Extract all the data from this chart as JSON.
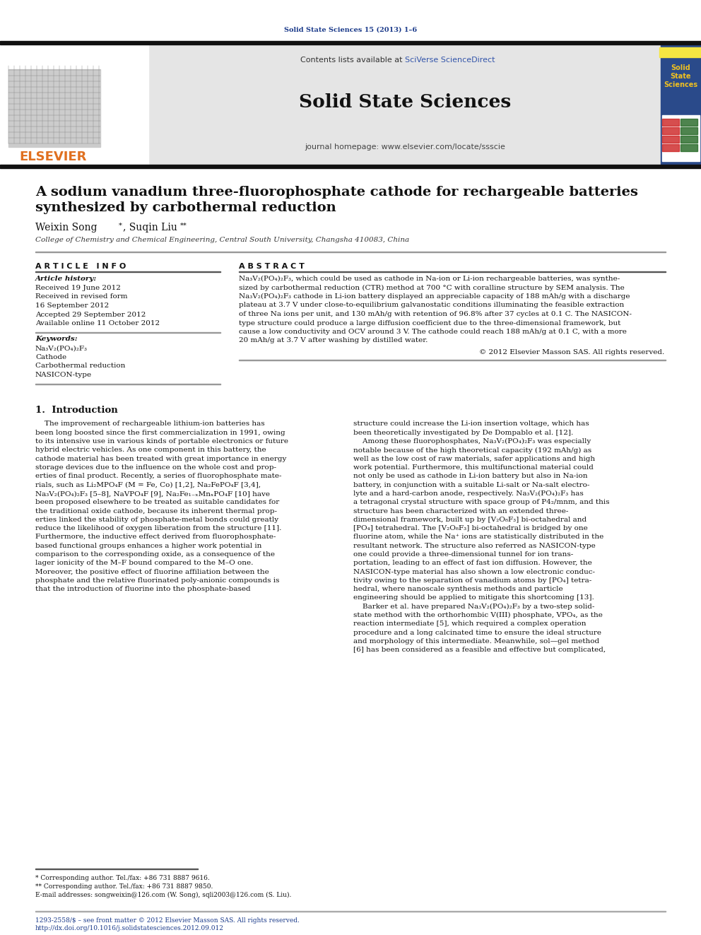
{
  "page_title_journal": "Solid State Sciences 15 (2013) 1–6",
  "journal_name": "Solid State Sciences",
  "contents_line_prefix": "Contents lists available at ",
  "contents_line_link": "SciVerse ScienceDirect",
  "journal_homepage": "journal homepage: www.elsevier.com/locate/ssscie",
  "paper_title_line1": "A sodium vanadium three-fluorophosphate cathode for rechargeable batteries",
  "paper_title_line2": "synthesized by carbothermal reduction",
  "affiliation": "College of Chemistry and Chemical Engineering, Central South University, Changsha 410083, China",
  "article_info_header": "A R T I C L E   I N F O",
  "abstract_header": "A B S T R A C T",
  "article_history_label": "Article history:",
  "received": "Received 19 June 2012",
  "received_revised1": "Received in revised form",
  "received_revised2": "16 September 2012",
  "accepted": "Accepted 29 September 2012",
  "available": "Available online 11 October 2012",
  "keywords_label": "Keywords:",
  "keyword1": "Na₃V₂(PO₄)₂F₃",
  "keyword2": "Cathode",
  "keyword3": "Carbothermal reduction",
  "keyword4": "NASICON-type",
  "abstract_lines": [
    "Na₃V₂(PO₄)₂F₃, which could be used as cathode in Na-ion or Li-ion rechargeable batteries, was synthe-",
    "sized by carbothermal reduction (CTR) method at 700 °C with coralline structure by SEM analysis. The",
    "Na₃V₂(PO₄)₂F₃ cathode in Li-ion battery displayed an appreciable capacity of 188 mAh/g with a discharge",
    "plateau at 3.7 V under close-to-equilibrium galvanostatic conditions illuminating the feasible extraction",
    "of three Na ions per unit, and 130 mAh/g with retention of 96.8% after 37 cycles at 0.1 C. The NASICON-",
    "type structure could produce a large diffusion coefficient due to the three-dimensional framework, but",
    "cause a low conductivity and OCV around 3 V. The cathode could reach 188 mAh/g at 0.1 C, with a more",
    "20 mAh/g at 3.7 V after washing by distilled water."
  ],
  "copyright": "© 2012 Elsevier Masson SAS. All rights reserved.",
  "section1_header": "1.  Introduction",
  "left_col_lines": [
    "    The improvement of rechargeable lithium-ion batteries has",
    "been long boosted since the first commercialization in 1991, owing",
    "to its intensive use in various kinds of portable electronics or future",
    "hybrid electric vehicles. As one component in this battery, the",
    "cathode material has been treated with great importance in energy",
    "storage devices due to the influence on the whole cost and prop-",
    "erties of final product. Recently, a series of fluorophosphate mate-",
    "rials, such as Li₂MPO₄F (M = Fe, Co) [1,2], Na₂FePO₄F [3,4],",
    "Na₃V₂(PO₄)₂F₃ [5–8], NaVPO₄F [9], Na₂Fe₁₋ₓMnₓPO₄F [10] have",
    "been proposed elsewhere to be treated as suitable candidates for",
    "the traditional oxide cathode, because its inherent thermal prop-",
    "erties linked the stability of phosphate-metal bonds could greatly",
    "reduce the likelihood of oxygen liberation from the structure [11].",
    "Furthermore, the inductive effect derived from fluorophosphate-",
    "based functional groups enhances a higher work potential in",
    "comparison to the corresponding oxide, as a consequence of the",
    "lager ionicity of the M–F bound compared to the M–O one.",
    "Moreover, the positive effect of fluorine affiliation between the",
    "phosphate and the relative fluorinated poly-anionic compounds is",
    "that the introduction of fluorine into the phosphate-based"
  ],
  "right_col_lines": [
    "structure could increase the Li-ion insertion voltage, which has",
    "been theoretically investigated by De Dompablo et al. [12].",
    "    Among these fluorophosphates, Na₃V₂(PO₄)₂F₃ was especially",
    "notable because of the high theoretical capacity (192 mAh/g) as",
    "well as the low cost of raw materials, safer applications and high",
    "work potential. Furthermore, this multifunctional material could",
    "not only be used as cathode in Li-ion battery but also in Na-ion",
    "battery, in conjunction with a suitable Li-salt or Na-salt electro-",
    "lyte and a hard-carbon anode, respectively. Na₃V₂(PO₄)₂F₃ has",
    "a tetragonal crystal structure with space group of P4₂/mnm, and this",
    "structure has been characterized with an extended three-",
    "dimensional framework, built up by [V₂O₈F₃] bi-octahedral and",
    "[PO₄] tetrahedral. The [V₂O₈F₃] bi-octahedral is bridged by one",
    "fluorine atom, while the Na⁺ ions are statistically distributed in the",
    "resultant network. The structure also referred as NASICON-type",
    "one could provide a three-dimensional tunnel for ion trans-",
    "portation, leading to an effect of fast ion diffusion. However, the",
    "NASICON-type material has also shown a low electronic conduc-",
    "tivity owing to the separation of vanadium atoms by [PO₄] tetra-",
    "hedral, where nanoscale synthesis methods and particle",
    "engineering should be applied to mitigate this shortcoming [13].",
    "    Barker et al. have prepared Na₃V₂(PO₄)₂F₃ by a two-step solid-",
    "state method with the orthorhombic V(III) phosphate, VPO₄, as the",
    "reaction intermediate [5], which required a complex operation",
    "procedure and a long calcinated time to ensure the ideal structure",
    "and morphology of this intermediate. Meanwhile, sol—gel method",
    "[6] has been considered as a feasible and effective but complicated,"
  ],
  "footnote1": "* Corresponding author. Tel./fax: +86 731 8887 9616.",
  "footnote2": "** Corresponding author. Tel./fax: +86 731 8887 9850.",
  "footnote3": "E-mail addresses: songweixin@126.com (W. Song), sqli2003@126.com (S. Liu).",
  "issn_line": "1293-2558/$ – see front matter © 2012 Elsevier Masson SAS. All rights reserved.",
  "doi_line": "http://dx.doi.org/10.1016/j.solidstatesciences.2012.09.012",
  "bg_color": "#ffffff",
  "header_bg": "#e5e5e5",
  "thick_bar_color": "#111111",
  "journal_title_color": "#1a3a8a",
  "sciverse_color": "#3355aa",
  "elsevier_color": "#e07020",
  "sidebar_bg": "#2a4a8a",
  "sidebar_title_color": "#f0c020",
  "link_color": "#1a3a8a"
}
